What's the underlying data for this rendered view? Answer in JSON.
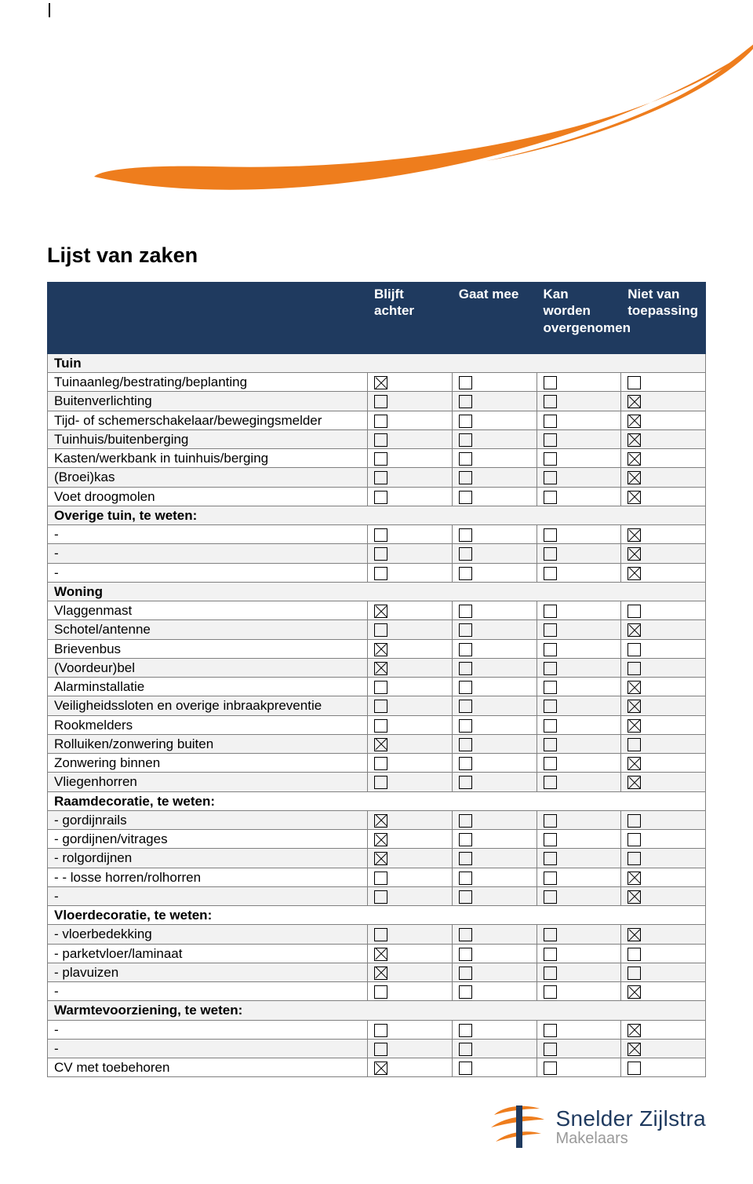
{
  "title": "Lijst van zaken",
  "columns": [
    "Blijft achter",
    "Gaat mee",
    "Kan worden overgenomen",
    "Niet van toepassing"
  ],
  "header_bg": "#1f3a5f",
  "header_fg": "#ffffff",
  "row_alt_bg": "#f2f2f2",
  "accent_color": "#ee7d1d",
  "logo_name": "Snelder Zijlstra",
  "logo_sub": "Makelaars",
  "rows": [
    {
      "type": "section",
      "label": "Tuin"
    },
    {
      "type": "item",
      "label": "Tuinaanleg/bestrating/beplanting",
      "checks": [
        true,
        false,
        false,
        false
      ]
    },
    {
      "type": "item",
      "label": "Buitenverlichting",
      "checks": [
        false,
        false,
        false,
        true
      ]
    },
    {
      "type": "item",
      "label": "Tijd- of schemerschakelaar/bewegingsmelder",
      "checks": [
        false,
        false,
        false,
        true
      ]
    },
    {
      "type": "item",
      "label": "Tuinhuis/buitenberging",
      "checks": [
        false,
        false,
        false,
        true
      ]
    },
    {
      "type": "item",
      "label": "Kasten/werkbank in tuinhuis/berging",
      "checks": [
        false,
        false,
        false,
        true
      ]
    },
    {
      "type": "item",
      "label": "(Broei)kas",
      "checks": [
        false,
        false,
        false,
        true
      ]
    },
    {
      "type": "item",
      "label": "Voet droogmolen",
      "checks": [
        false,
        false,
        false,
        true
      ]
    },
    {
      "type": "section",
      "label": "Overige tuin, te weten:"
    },
    {
      "type": "indent",
      "label": "-",
      "checks": [
        false,
        false,
        false,
        true
      ]
    },
    {
      "type": "indent",
      "label": "-",
      "checks": [
        false,
        false,
        false,
        true
      ]
    },
    {
      "type": "indent",
      "label": "-",
      "checks": [
        false,
        false,
        false,
        true
      ]
    },
    {
      "type": "section",
      "label": "Woning"
    },
    {
      "type": "item",
      "label": "Vlaggenmast",
      "checks": [
        true,
        false,
        false,
        false
      ]
    },
    {
      "type": "item",
      "label": "Schotel/antenne",
      "checks": [
        false,
        false,
        false,
        true
      ]
    },
    {
      "type": "item",
      "label": "Brievenbus",
      "checks": [
        true,
        false,
        false,
        false
      ]
    },
    {
      "type": "item",
      "label": "(Voordeur)bel",
      "checks": [
        true,
        false,
        false,
        false
      ]
    },
    {
      "type": "item",
      "label": "Alarminstallatie",
      "checks": [
        false,
        false,
        false,
        true
      ]
    },
    {
      "type": "item",
      "label": "Veiligheidssloten en overige inbraakpreventie",
      "checks": [
        false,
        false,
        false,
        true
      ]
    },
    {
      "type": "item",
      "label": "Rookmelders",
      "checks": [
        false,
        false,
        false,
        true
      ]
    },
    {
      "type": "item",
      "label": "Rolluiken/zonwering buiten",
      "checks": [
        true,
        false,
        false,
        false
      ]
    },
    {
      "type": "item",
      "label": "Zonwering binnen",
      "checks": [
        false,
        false,
        false,
        true
      ]
    },
    {
      "type": "item",
      "label": "Vliegenhorren",
      "checks": [
        false,
        false,
        false,
        true
      ]
    },
    {
      "type": "section",
      "label": "Raamdecoratie, te weten:"
    },
    {
      "type": "indent",
      "label": "- gordijnrails",
      "checks": [
        true,
        false,
        false,
        false
      ]
    },
    {
      "type": "indent",
      "label": "- gordijnen/vitrages",
      "checks": [
        true,
        false,
        false,
        false
      ]
    },
    {
      "type": "indent",
      "label": "- rolgordijnen",
      "checks": [
        true,
        false,
        false,
        false
      ]
    },
    {
      "type": "indent",
      "label": "- - losse horren/rolhorren",
      "checks": [
        false,
        false,
        false,
        true
      ]
    },
    {
      "type": "indent",
      "label": "-",
      "checks": [
        false,
        false,
        false,
        true
      ]
    },
    {
      "type": "section",
      "label": "Vloerdecoratie, te weten:"
    },
    {
      "type": "indent",
      "label": "- vloerbedekking",
      "checks": [
        false,
        false,
        false,
        true
      ]
    },
    {
      "type": "indent",
      "label": "- parketvloer/laminaat",
      "checks": [
        true,
        false,
        false,
        false
      ]
    },
    {
      "type": "indent",
      "label": "- plavuizen",
      "checks": [
        true,
        false,
        false,
        false
      ]
    },
    {
      "type": "indent",
      "label": "-",
      "checks": [
        false,
        false,
        false,
        true
      ]
    },
    {
      "type": "section",
      "label": "Warmtevoorziening, te weten:"
    },
    {
      "type": "indent",
      "label": "-",
      "checks": [
        false,
        false,
        false,
        true
      ]
    },
    {
      "type": "indent",
      "label": "-",
      "checks": [
        false,
        false,
        false,
        true
      ]
    },
    {
      "type": "item",
      "label": "CV met toebehoren",
      "checks": [
        true,
        false,
        false,
        false
      ]
    }
  ]
}
